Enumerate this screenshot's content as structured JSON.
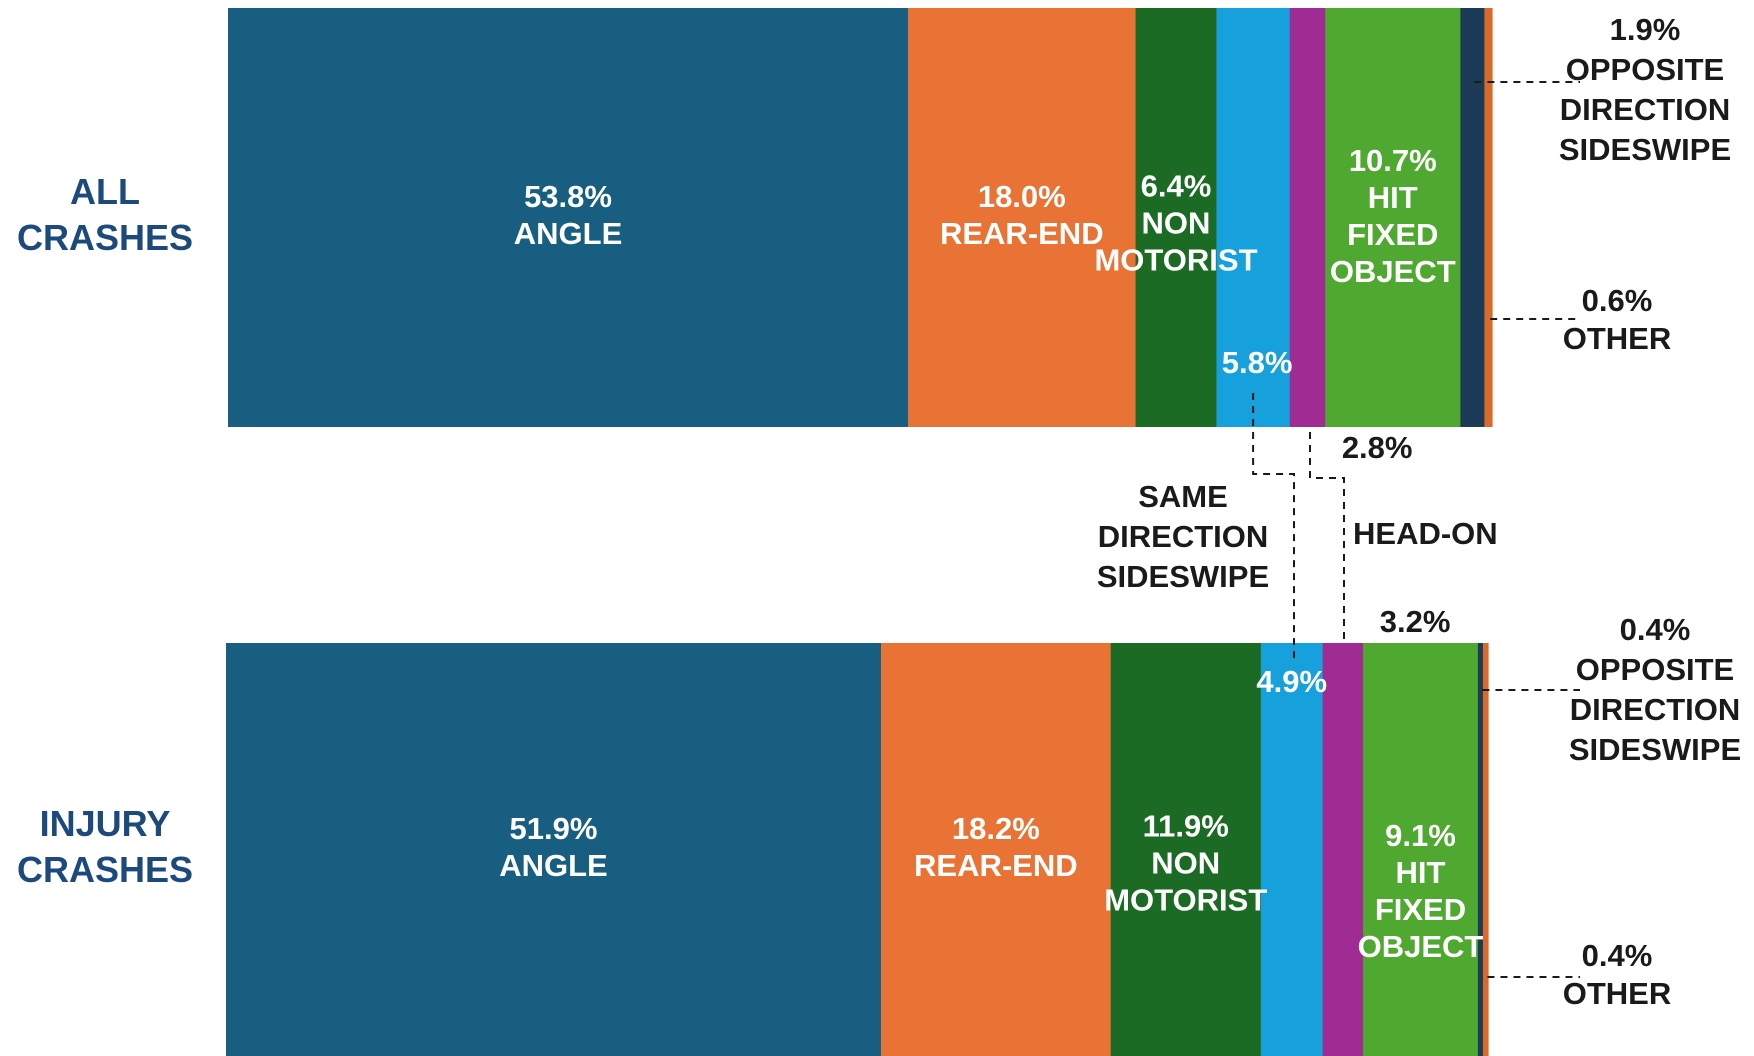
{
  "chart_data": {
    "type": "bar",
    "orientation": "horizontal",
    "stacked": true,
    "percent_scale": true,
    "categories": [
      "ALL CRASHES",
      "INJURY CRASHES"
    ],
    "row_labels": [
      [
        "ALL",
        "CRASHES"
      ],
      [
        "INJURY",
        "CRASHES"
      ]
    ],
    "series": [
      {
        "name": "ANGLE",
        "color": "#175e80",
        "values": [
          53.8,
          51.9
        ],
        "text_labels": [
          [
            "53.8%",
            "ANGLE"
          ],
          [
            "51.9%",
            "ANGLE"
          ]
        ]
      },
      {
        "name": "REAR-END",
        "color": "#e97334",
        "values": [
          18.0,
          18.2
        ],
        "text_labels": [
          [
            "18.0%",
            "REAR-END"
          ],
          [
            "18.2%",
            "REAR-END"
          ]
        ]
      },
      {
        "name": "NON MOTORIST",
        "color": "#1c6b24",
        "values": [
          6.4,
          11.9
        ],
        "text_labels": [
          [
            "6.4%",
            "NON",
            "MOTORIST"
          ],
          [
            "11.9%",
            "NON",
            "MOTORIST"
          ]
        ]
      },
      {
        "name": "SAME DIRECTION SIDESWIPE",
        "color": "#16a0dc",
        "values": [
          5.8,
          4.9
        ],
        "text_labels": [
          [
            "5.8%"
          ],
          [
            "4.9%"
          ]
        ]
      },
      {
        "name": "HEAD-ON",
        "color": "#a02b93",
        "values": [
          2.8,
          3.2
        ],
        "text_labels": [
          [
            "2.8%"
          ],
          [
            "3.2%"
          ]
        ]
      },
      {
        "name": "HIT FIXED OBJECT",
        "color": "#4fa82f",
        "values": [
          10.7,
          9.1
        ],
        "text_labels": [
          [
            "10.7%",
            "HIT",
            "FIXED",
            "OBJECT"
          ],
          [
            "9.1%",
            "HIT",
            "FIXED",
            "OBJECT"
          ]
        ]
      },
      {
        "name": "OPPOSITE DIRECTION SIDESWIPE",
        "color": "#1b3b56",
        "values": [
          1.9,
          0.4
        ],
        "text_labels": [
          [
            "1.9%",
            "OPPOSITE",
            "DIRECTION",
            "SIDESWIPE"
          ],
          [
            "0.4%",
            "OPPOSITE",
            "DIRECTION",
            "SIDESWIPE"
          ]
        ]
      },
      {
        "name": "OTHER",
        "color": "#d96a2a",
        "values": [
          0.6,
          0.4
        ],
        "text_labels": [
          [
            "0.6%",
            "OTHER"
          ],
          [
            "0.4%",
            "OTHER"
          ]
        ]
      }
    ],
    "shared_callouts": [
      {
        "series": "SAME DIRECTION SIDESWIPE",
        "lines": [
          "SAME",
          "DIRECTION",
          "SIDESWIPE"
        ]
      },
      {
        "series": "HEAD-ON",
        "lines": [
          "HEAD-ON"
        ]
      }
    ]
  }
}
